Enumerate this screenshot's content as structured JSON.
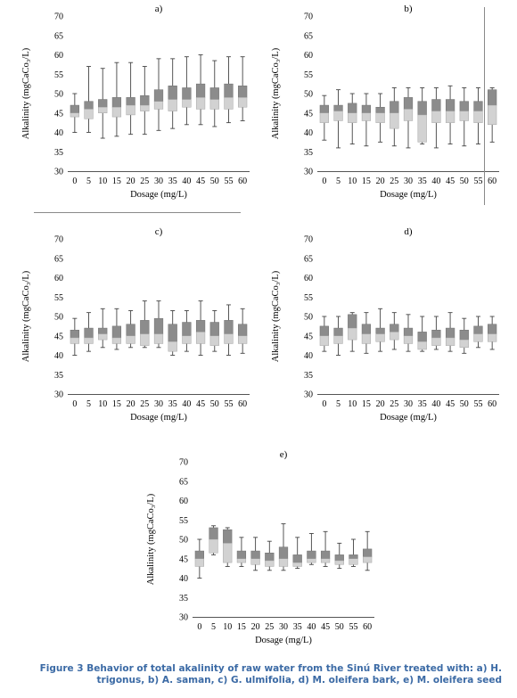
{
  "caption": "Figure 3 Behavior of total akalinity of raw water from the Sinú River treated with: a) H. trigonus, b) A. saman, c) G. ulmifolia, d) M. oleifera bark, e) M. oleifera seed",
  "colors": {
    "upper_box": "#8c8c8c",
    "lower_box": "#d2d2d2",
    "whisker": "#444444",
    "caption": "#3b6aa5"
  },
  "chart_data": [
    {
      "type": "boxplot",
      "panel": "a)",
      "xlabel": "Dosage (mg/L)",
      "ylabel": "Alkalinity  (mgCaCo₃/L)",
      "ylim": [
        30,
        70
      ],
      "yticks": [
        "30",
        "35",
        "40",
        "45",
        "50",
        "55",
        "60",
        "65",
        "70"
      ],
      "categories": [
        "0",
        "5",
        "10",
        "15",
        "20",
        "25",
        "30",
        "35",
        "40",
        "45",
        "50",
        "55",
        "60"
      ],
      "boxes": [
        {
          "min": 40,
          "q1": 44,
          "median": 45,
          "q3": 47,
          "max": 50
        },
        {
          "min": 40,
          "q1": 43.5,
          "median": 46,
          "q3": 48,
          "max": 57
        },
        {
          "min": 38.5,
          "q1": 45,
          "median": 46.5,
          "q3": 48.5,
          "max": 56.5
        },
        {
          "min": 39,
          "q1": 44,
          "median": 46.5,
          "q3": 49,
          "max": 58
        },
        {
          "min": 39.5,
          "q1": 44.5,
          "median": 47,
          "q3": 49,
          "max": 58
        },
        {
          "min": 39.5,
          "q1": 45.5,
          "median": 47,
          "q3": 49.5,
          "max": 57
        },
        {
          "min": 40.5,
          "q1": 46,
          "median": 48,
          "q3": 51,
          "max": 59
        },
        {
          "min": 41,
          "q1": 45.5,
          "median": 48.5,
          "q3": 52,
          "max": 59
        },
        {
          "min": 42,
          "q1": 46.5,
          "median": 48.5,
          "q3": 51.5,
          "max": 59.5
        },
        {
          "min": 42,
          "q1": 46,
          "median": 49,
          "q3": 52.5,
          "max": 60
        },
        {
          "min": 41.5,
          "q1": 46,
          "median": 48.5,
          "q3": 51.5,
          "max": 58.5
        },
        {
          "min": 42.5,
          "q1": 46,
          "median": 49,
          "q3": 52.5,
          "max": 59.5
        },
        {
          "min": 43,
          "q1": 46.5,
          "median": 49,
          "q3": 52,
          "max": 59.5
        }
      ]
    },
    {
      "type": "boxplot",
      "panel": "b)",
      "xlabel": "Dosage (mg/L)",
      "ylabel": "Alkalinity  (mgCaCo₃/L)",
      "ylim": [
        30,
        70
      ],
      "yticks": [
        "30",
        "35",
        "40",
        "45",
        "50",
        "55",
        "60",
        "65",
        "70"
      ],
      "categories": [
        "0",
        "5",
        "10",
        "15",
        "20",
        "25",
        "30",
        "35",
        "40",
        "45",
        "50",
        "55",
        "60"
      ],
      "boxes": [
        {
          "min": 38,
          "q1": 42.5,
          "median": 45,
          "q3": 47,
          "max": 49.5
        },
        {
          "min": 36,
          "q1": 43,
          "median": 45.5,
          "q3": 47,
          "max": 51
        },
        {
          "min": 37,
          "q1": 42.5,
          "median": 45,
          "q3": 47.5,
          "max": 50
        },
        {
          "min": 36.5,
          "q1": 43,
          "median": 45,
          "q3": 47,
          "max": 50
        },
        {
          "min": 37.5,
          "q1": 42.5,
          "median": 45,
          "q3": 46.5,
          "max": 50
        },
        {
          "min": 36.5,
          "q1": 41,
          "median": 45,
          "q3": 48,
          "max": 51.5
        },
        {
          "min": 36,
          "q1": 43,
          "median": 46,
          "q3": 49,
          "max": 51.5
        },
        {
          "min": 37,
          "q1": 37.5,
          "median": 44.5,
          "q3": 48,
          "max": 51.5
        },
        {
          "min": 36,
          "q1": 42.5,
          "median": 45.5,
          "q3": 48.5,
          "max": 51.5
        },
        {
          "min": 37,
          "q1": 42.5,
          "median": 45.5,
          "q3": 48.5,
          "max": 52
        },
        {
          "min": 36.5,
          "q1": 43,
          "median": 45.5,
          "q3": 48,
          "max": 51.5
        },
        {
          "min": 37,
          "q1": 42.5,
          "median": 45.5,
          "q3": 48,
          "max": 51.5
        },
        {
          "min": 37.5,
          "q1": 42,
          "median": 47,
          "q3": 51,
          "max": 51.5
        }
      ]
    },
    {
      "type": "boxplot",
      "panel": "c)",
      "xlabel": "Dosage (mg/L)",
      "ylabel": "Alkalinity  (mgCaCo₃/L)",
      "ylim": [
        30,
        70
      ],
      "yticks": [
        "30",
        "35",
        "40",
        "45",
        "50",
        "55",
        "60",
        "65",
        "70"
      ],
      "categories": [
        "0",
        "5",
        "10",
        "15",
        "20",
        "25",
        "30",
        "35",
        "40",
        "45",
        "50",
        "55",
        "60"
      ],
      "boxes": [
        {
          "min": 40,
          "q1": 43,
          "median": 44.5,
          "q3": 46.5,
          "max": 49.5
        },
        {
          "min": 41,
          "q1": 43,
          "median": 44.5,
          "q3": 47,
          "max": 51
        },
        {
          "min": 42,
          "q1": 44,
          "median": 45.5,
          "q3": 47,
          "max": 52
        },
        {
          "min": 41.5,
          "q1": 43,
          "median": 44.5,
          "q3": 47.5,
          "max": 52
        },
        {
          "min": 42,
          "q1": 43,
          "median": 45,
          "q3": 48,
          "max": 51.5
        },
        {
          "min": 42,
          "q1": 42.5,
          "median": 45.5,
          "q3": 49,
          "max": 54
        },
        {
          "min": 42,
          "q1": 43,
          "median": 45.5,
          "q3": 49.5,
          "max": 54
        },
        {
          "min": 40,
          "q1": 41,
          "median": 43.5,
          "q3": 48,
          "max": 51.5
        },
        {
          "min": 41,
          "q1": 43,
          "median": 45,
          "q3": 48.5,
          "max": 51.5
        },
        {
          "min": 40,
          "q1": 43,
          "median": 46,
          "q3": 49,
          "max": 54
        },
        {
          "min": 41,
          "q1": 42.5,
          "median": 45,
          "q3": 48.5,
          "max": 51.5
        },
        {
          "min": 40,
          "q1": 43,
          "median": 45.5,
          "q3": 49,
          "max": 53
        },
        {
          "min": 40.5,
          "q1": 43,
          "median": 45,
          "q3": 48,
          "max": 52
        }
      ]
    },
    {
      "type": "boxplot",
      "panel": "d)",
      "xlabel": "Dosage (mg/L)",
      "ylabel": "Alkalinity  (mgCaCo₃/L)",
      "ylim": [
        30,
        70
      ],
      "yticks": [
        "30",
        "35",
        "40",
        "45",
        "50",
        "55",
        "60",
        "65",
        "70"
      ],
      "categories": [
        "0",
        "5",
        "10",
        "15",
        "20",
        "25",
        "30",
        "35",
        "40",
        "45",
        "50",
        "55",
        "60"
      ],
      "boxes": [
        {
          "min": 41,
          "q1": 42.5,
          "median": 45,
          "q3": 47.5,
          "max": 50
        },
        {
          "min": 40,
          "q1": 43,
          "median": 45,
          "q3": 47,
          "max": 50
        },
        {
          "min": 41,
          "q1": 44,
          "median": 47,
          "q3": 50.5,
          "max": 51
        },
        {
          "min": 40.5,
          "q1": 43,
          "median": 45.5,
          "q3": 48,
          "max": 51
        },
        {
          "min": 41,
          "q1": 43.5,
          "median": 45.5,
          "q3": 47,
          "max": 52
        },
        {
          "min": 41.5,
          "q1": 44,
          "median": 46,
          "q3": 48,
          "max": 51
        },
        {
          "min": 41,
          "q1": 43,
          "median": 45,
          "q3": 47,
          "max": 50.5
        },
        {
          "min": 41,
          "q1": 41.5,
          "median": 43.5,
          "q3": 46,
          "max": 50
        },
        {
          "min": 41.5,
          "q1": 42.5,
          "median": 44.5,
          "q3": 46.5,
          "max": 50
        },
        {
          "min": 41,
          "q1": 42.5,
          "median": 44.5,
          "q3": 47,
          "max": 51
        },
        {
          "min": 40.5,
          "q1": 42,
          "median": 44,
          "q3": 46.5,
          "max": 49.5
        },
        {
          "min": 42,
          "q1": 43.5,
          "median": 45.5,
          "q3": 47.5,
          "max": 50
        },
        {
          "min": 41.5,
          "q1": 43.5,
          "median": 45.5,
          "q3": 48,
          "max": 50
        }
      ]
    },
    {
      "type": "boxplot",
      "panel": "e)",
      "xlabel": "Dosage (mg/L)",
      "ylabel": "Alkalinity  (mgCaCo₃/L)",
      "ylim": [
        30,
        70
      ],
      "yticks": [
        "30",
        "35",
        "40",
        "45",
        "50",
        "55",
        "60",
        "65",
        "70"
      ],
      "categories": [
        "0",
        "5",
        "10",
        "15",
        "20",
        "25",
        "30",
        "35",
        "40",
        "45",
        "50",
        "55",
        "60"
      ],
      "boxes": [
        {
          "min": 40,
          "q1": 43,
          "median": 45,
          "q3": 47,
          "max": 50
        },
        {
          "min": 46,
          "q1": 46.5,
          "median": 50,
          "q3": 53,
          "max": 53.5
        },
        {
          "min": 43,
          "q1": 44,
          "median": 49,
          "q3": 52.5,
          "max": 53
        },
        {
          "min": 43,
          "q1": 44,
          "median": 45,
          "q3": 47,
          "max": 50.5
        },
        {
          "min": 42,
          "q1": 43.5,
          "median": 45,
          "q3": 47,
          "max": 50.5
        },
        {
          "min": 42,
          "q1": 43,
          "median": 44.5,
          "q3": 46.5,
          "max": 49.5
        },
        {
          "min": 42,
          "q1": 43,
          "median": 45,
          "q3": 48,
          "max": 54
        },
        {
          "min": 42.5,
          "q1": 43,
          "median": 44,
          "q3": 46,
          "max": 50.5
        },
        {
          "min": 43.5,
          "q1": 44,
          "median": 45,
          "q3": 47,
          "max": 51.5
        },
        {
          "min": 43,
          "q1": 44,
          "median": 45,
          "q3": 47,
          "max": 52
        },
        {
          "min": 42.5,
          "q1": 43.5,
          "median": 44.5,
          "q3": 46,
          "max": 49
        },
        {
          "min": 43,
          "q1": 43.5,
          "median": 45,
          "q3": 46,
          "max": 50
        },
        {
          "min": 42,
          "q1": 44,
          "median": 45.5,
          "q3": 47.5,
          "max": 52
        }
      ]
    }
  ]
}
